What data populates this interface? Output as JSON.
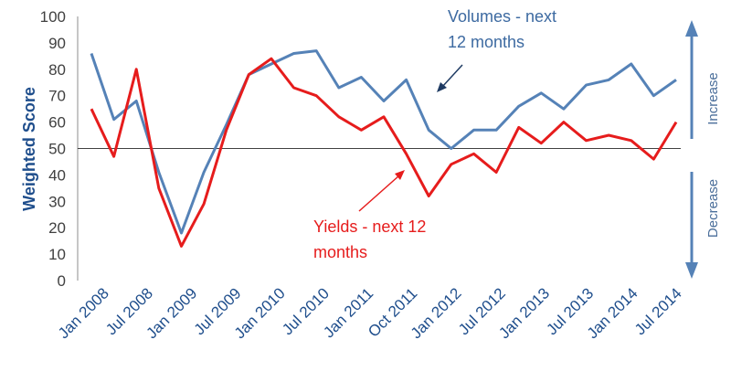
{
  "chart_data": {
    "type": "line",
    "ylabel": "Weighted Score",
    "ylim": [
      0,
      100
    ],
    "yticks": [
      0,
      10,
      20,
      30,
      40,
      50,
      60,
      70,
      80,
      90,
      100
    ],
    "baseline": 50,
    "xtick_labels": [
      "Jan 2008",
      "Jul 2008",
      "Jan 2009",
      "Jul 2009",
      "Jan 2010",
      "Jul 2010",
      "Jan 2011",
      "Oct 2011",
      "Jan 2012",
      "Jul 2012",
      "Jan 2013",
      "Jul 2013",
      "Jan 2014",
      "Jul 2014"
    ],
    "series": [
      {
        "name": "Volumes - next 12 months",
        "color": "#5582b7",
        "values": [
          86,
          61,
          68,
          41,
          18,
          41,
          59,
          78,
          82,
          86,
          87,
          73,
          77,
          68,
          76,
          57,
          50,
          57,
          57,
          66,
          71,
          65,
          74,
          76,
          82,
          70,
          76
        ]
      },
      {
        "name": "Yields - next 12 months",
        "color": "#e61c1c",
        "values": [
          65,
          47,
          80,
          35,
          13,
          29,
          57,
          78,
          84,
          73,
          70,
          62,
          57,
          62,
          48,
          32,
          44,
          48,
          41,
          58,
          52,
          60,
          53,
          55,
          53,
          46,
          60
        ]
      }
    ],
    "annotations": {
      "volumes_label": [
        "Volumes - next",
        "12 months"
      ],
      "yields_label": [
        "Yields - next 12",
        "months"
      ],
      "increase": "Increase",
      "decrease": "Decrease"
    },
    "grid": false,
    "legend": "none"
  }
}
